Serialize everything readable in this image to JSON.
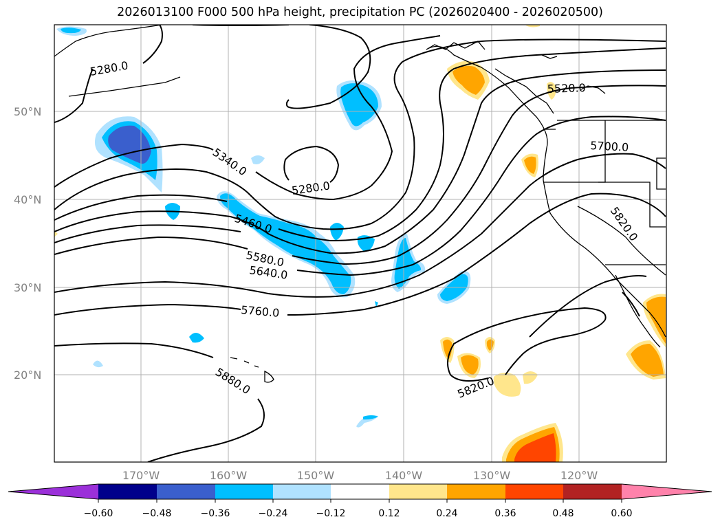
{
  "title": "2026013100 F000 500 hPa height, precipitation PC (2026020400 - 2026020500)",
  "lat_labels": [
    "50°N",
    "40°N",
    "30°N",
    "20°N"
  ],
  "lon_labels": [
    "170°W",
    "160°W",
    "150°W",
    "140°W",
    "130°W",
    "120°W"
  ],
  "contour_labels": [
    "5280.0",
    "5340.0",
    "5280.0",
    "5460.0",
    "5580.0",
    "5640.0",
    "5760.0",
    "5880.0",
    "5520.0",
    "5700.0",
    "5820.0",
    "5820.0"
  ],
  "colorbar": {
    "ticks": [
      "−0.60",
      "−0.48",
      "−0.36",
      "−0.24",
      "−0.12",
      "0.12",
      "0.24",
      "0.36",
      "0.48",
      "0.60"
    ],
    "colors": [
      "#9b30d9",
      "#00008b",
      "#3a5fcd",
      "#00bfff",
      "#b0e2ff",
      "#ffffff",
      "#ffe68c",
      "#ffa500",
      "#ff4500",
      "#b22222",
      "#ff82ab"
    ]
  },
  "colors": {
    "ocean_neg_light": "#b0e2ff",
    "neg_mid": "#00bfff",
    "neg_strong": "#3a5fcd",
    "pos_light": "#ffe68c",
    "pos_mid": "#ffa500",
    "pos_strong": "#ff4500"
  }
}
